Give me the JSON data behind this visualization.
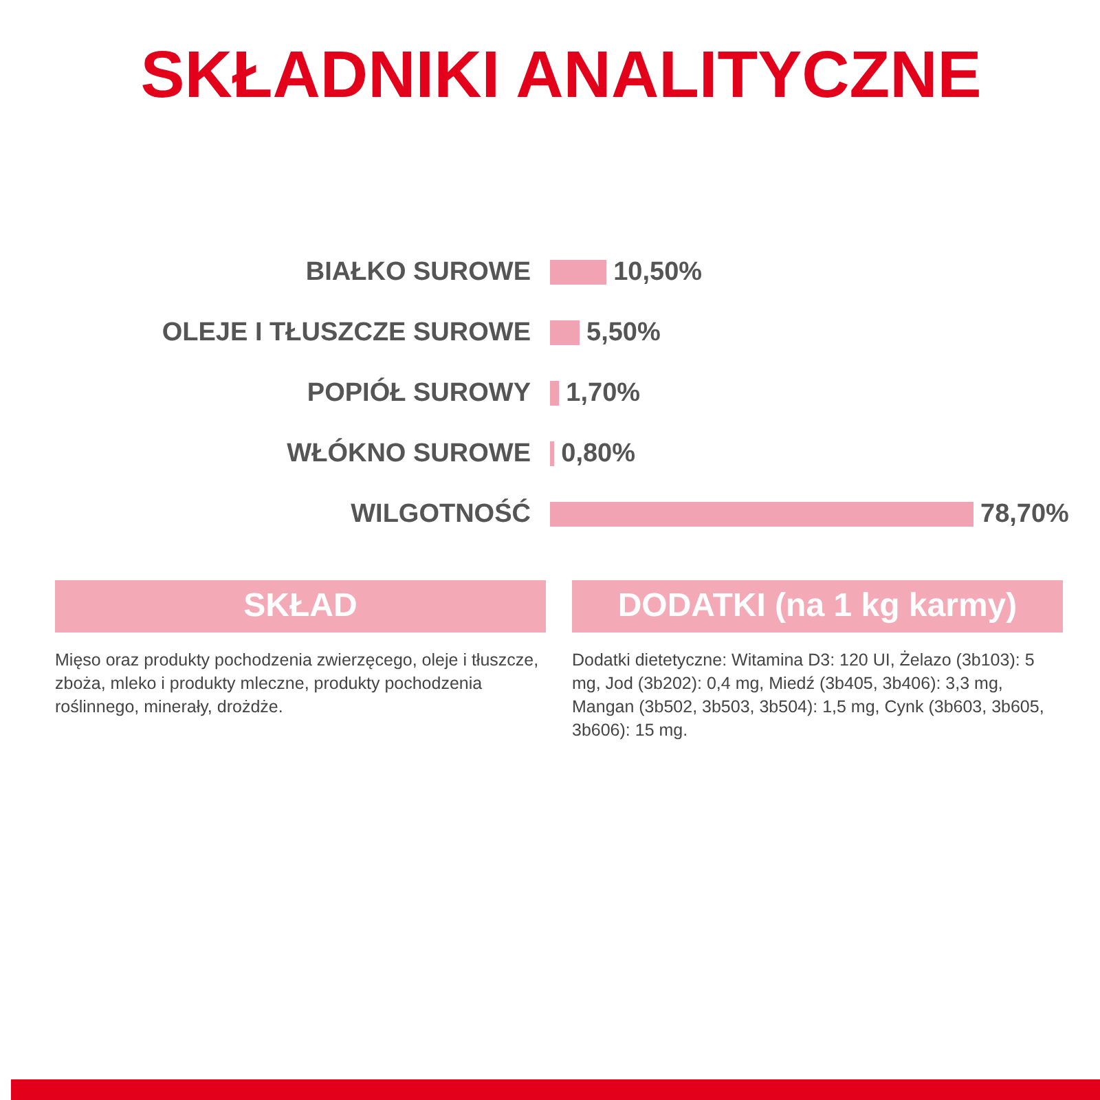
{
  "chart_data": {
    "type": "bar",
    "orientation": "horizontal",
    "title": "SKŁADNIKI ANALITYCZNE",
    "categories": [
      "BIAŁKO SUROWE",
      "OLEJE I TŁUSZCZE SUROWE",
      "POPIÓŁ SUROWY",
      "WŁÓKNO SUROWE",
      "WILGOTNOŚĆ"
    ],
    "values": [
      10.5,
      5.5,
      1.7,
      0.8,
      78.7
    ],
    "value_labels": [
      "10,50%",
      "5,50%",
      "1,70%",
      "0,80%",
      "78,70%"
    ],
    "color": "#f2a3b3",
    "annotations": [
      "SKŁAD",
      "Mięso oraz produkty pochodzenia zwierzęcego, oleje i tłuszcze, zboża, mleko i produkty mleczne, produkty pochodzenia roślinnego, minerały, drożdże.",
      "DODATKI (na 1 kg karmy)",
      "Dodatki dietetyczne: Witamina D3: 120 UI, Żelazo (3b103): 5 mg, Jod (3b202): 0,4 mg, Miedź (3b405, 3b406): 3,3 mg, Mangan (3b502, 3b503, 3b504): 1,5 mg, Cynk (3b603, 3b605, 3b606): 15 mg."
    ]
  }
}
